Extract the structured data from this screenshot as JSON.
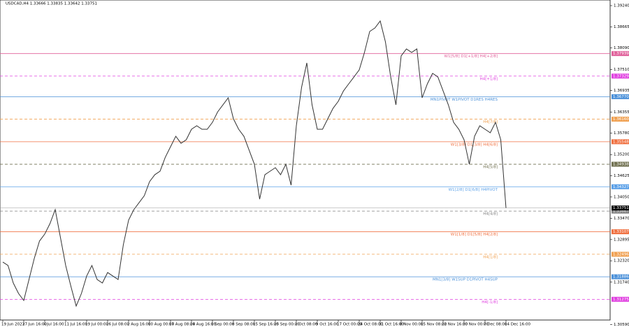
{
  "chart_data": {
    "type": "line",
    "title": "USDCAD,H4 1.33666 1.33835 1.33642 1.33751",
    "ylim": [
      1.30713,
      1.39392
    ],
    "yticks": [
      {
        "value": 1.3924,
        "label": "1.39240"
      },
      {
        "value": 1.38665,
        "label": "1.38665"
      },
      {
        "value": 1.3809,
        "label": "1.38090"
      },
      {
        "value": 1.3751,
        "label": "1.37510"
      },
      {
        "value": 1.36935,
        "label": "1.36935"
      },
      {
        "value": 1.36355,
        "label": "1.36355"
      },
      {
        "value": 1.3578,
        "label": "1.35780"
      },
      {
        "value": 1.352,
        "label": "1.35200"
      },
      {
        "value": 1.34625,
        "label": "1.34625"
      },
      {
        "value": 1.3405,
        "label": "1.34050"
      },
      {
        "value": 1.3347,
        "label": "1.33470"
      },
      {
        "value": 1.32895,
        "label": "1.32895"
      },
      {
        "value": 1.3232,
        "label": "1.32320"
      },
      {
        "value": 1.3174,
        "label": "1.31740"
      },
      {
        "value": 1.3059,
        "label": "1.30590"
      }
    ],
    "x_labels": [
      {
        "value": 0,
        "label": "19 Jun 2023"
      },
      {
        "value": 4,
        "label": "27 Jun 16:00"
      },
      {
        "value": 8,
        "label": "4 Jul 16:00"
      },
      {
        "value": 12,
        "label": "11 Jul 16:00"
      },
      {
        "value": 16,
        "label": "19 Jul 00:00"
      },
      {
        "value": 20,
        "label": "26 Jul 08:00"
      },
      {
        "value": 24,
        "label": "2 Aug 16:00"
      },
      {
        "value": 28,
        "label": "10 Aug 00:00"
      },
      {
        "value": 32,
        "label": "17 Aug 08:00"
      },
      {
        "value": 36,
        "label": "24 Aug 16:00"
      },
      {
        "value": 40,
        "label": "1 Sep 00:00"
      },
      {
        "value": 44,
        "label": "8 Sep 08:00"
      },
      {
        "value": 48,
        "label": "15 Sep 16:00"
      },
      {
        "value": 52,
        "label": "25 Sep 00:00"
      },
      {
        "value": 56,
        "label": "2 Oct 08:00"
      },
      {
        "value": 60,
        "label": "9 Oct 16:00"
      },
      {
        "value": 64,
        "label": "17 Oct 00:00"
      },
      {
        "value": 68,
        "label": "24 Oct 08:00"
      },
      {
        "value": 72,
        "label": "31 Oct 16:00"
      },
      {
        "value": 76,
        "label": "8 Nov 00:00"
      },
      {
        "value": 80,
        "label": "15 Nov 08:00"
      },
      {
        "value": 84,
        "label": "22 Nov 16:00"
      },
      {
        "value": 88,
        "label": "30 Nov 00:00"
      },
      {
        "value": 92,
        "label": "7 Dec 08:00"
      },
      {
        "value": 96,
        "label": "14 Dec 16:00"
      }
    ],
    "series": [
      {
        "name": "USDCAD",
        "color": "#333333",
        "values": [
          1.32285,
          1.32191,
          1.31717,
          1.31433,
          1.31243,
          1.31812,
          1.3238,
          1.32854,
          1.33043,
          1.33328,
          1.33707,
          1.32949,
          1.32191,
          1.31622,
          1.31091,
          1.31433,
          1.31906,
          1.32191,
          1.31812,
          1.31717,
          1.32001,
          1.31906,
          1.31812,
          1.32759,
          1.33422,
          1.33707,
          1.33896,
          1.34086,
          1.34465,
          1.34654,
          1.34749,
          1.35128,
          1.35412,
          1.35696,
          1.35507,
          1.35602,
          1.35886,
          1.35981,
          1.35886,
          1.35886,
          1.36075,
          1.3636,
          1.36549,
          1.36739,
          1.3617,
          1.35886,
          1.35696,
          1.35317,
          1.34938,
          1.33991,
          1.34654,
          1.34749,
          1.34844,
          1.34654,
          1.34938,
          1.3437,
          1.35981,
          1.37023,
          1.37686,
          1.36549,
          1.35886,
          1.35886,
          1.3617,
          1.36454,
          1.36644,
          1.36928,
          1.37118,
          1.37307,
          1.37497,
          1.3797,
          1.38539,
          1.38634,
          1.38823,
          1.38255,
          1.37307,
          1.36549,
          1.37876,
          1.38065,
          1.3797,
          1.38065,
          1.36739,
          1.37118,
          1.37402,
          1.37307,
          1.36928,
          1.36549,
          1.36075,
          1.35886,
          1.35602,
          1.34938,
          1.35696,
          1.35981,
          1.35886,
          1.35791,
          1.36075,
          1.35602,
          1.33751
        ]
      }
    ],
    "current_price": {
      "value": 1.33751,
      "label": "1.33751"
    },
    "levels": [
      {
        "value": 1.37939,
        "value_label": "1.37939",
        "text": "W1[5/8] D1[+1/8] H4[+2/8]",
        "color": "#e0609a",
        "dashed": false
      },
      {
        "value": 1.37329,
        "value_label": "1.37329",
        "text": "H4[+1/8]",
        "color": "#e040e0",
        "dashed": true
      },
      {
        "value": 1.3677,
        "value_label": "1.36770",
        "text": "MN1PIVOT W1PIVOT D1RES H4RES",
        "color": "#4a90d9",
        "dashed": false
      },
      {
        "value": 1.3616,
        "value_label": "1.36160",
        "text": "H4[7/8]",
        "color": "#f0a050",
        "dashed": true
      },
      {
        "value": 1.35548,
        "value_label": "1.35548",
        "text": "W1[3/8] D1[3/8] H4[6/8]",
        "color": "#f07040",
        "dashed": false
      },
      {
        "value": 1.34938,
        "value_label": "1.34938",
        "text": "H4[5/8]",
        "color": "#707050",
        "dashed": true
      },
      {
        "value": 1.34327,
        "value_label": "1.34327",
        "text": "W1[2/8] D1[6/8] H4PIVOT",
        "color": "#5aa0e8",
        "dashed": false
      },
      {
        "value": 1.33667,
        "value_label": "1.33667",
        "text": "H4[4/8]",
        "color": "#808080",
        "dashed": true
      },
      {
        "value": 1.33107,
        "value_label": "1.33107",
        "text": "W1[1/8] D1[5/8] H4[2/8]",
        "color": "#f07040",
        "dashed": false
      },
      {
        "value": 1.32496,
        "value_label": "1.32496",
        "text": "H4[1/8]",
        "color": "#f0a050",
        "dashed": true
      },
      {
        "value": 1.31886,
        "value_label": "1.31886",
        "text": "MN1[3/8] W1SUP D1PIVOT H4SUP",
        "color": "#4a90d9",
        "dashed": false
      },
      {
        "value": 1.31275,
        "value_label": "1.31275",
        "text": "H4[-1/8]",
        "color": "#e040e0",
        "dashed": true
      }
    ]
  }
}
